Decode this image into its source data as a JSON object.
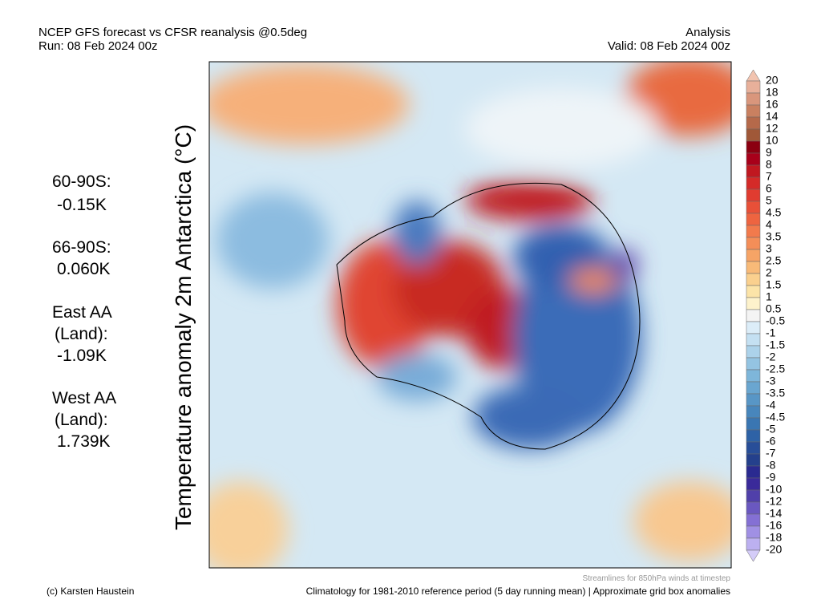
{
  "header": {
    "title": "NCEP GFS forecast vs CFSR reanalysis @0.5deg",
    "run": "Run: 08 Feb 2024 00z",
    "kind": "Analysis",
    "valid": "Valid: 08 Feb 2024 00z"
  },
  "map_title": "Temperature anomaly 2m Antarctica (°C)",
  "stats": [
    "60-90S:",
    "-0.15K",
    "66-90S:",
    "0.060K",
    "East AA",
    "(Land):",
    "-1.09K",
    "West AA",
    "(Land):",
    "1.739K"
  ],
  "colorbar": {
    "labels": [
      "20",
      "18",
      "16",
      "14",
      "12",
      "10",
      "9",
      "8",
      "7",
      "6",
      "5",
      "4.5",
      "4",
      "3.5",
      "3",
      "2.5",
      "2",
      "1.5",
      "1",
      "0.5",
      "-0.5",
      "-1",
      "-1.5",
      "-2",
      "-2.5",
      "-3",
      "-3.5",
      "-4",
      "-4.5",
      "-5",
      "-6",
      "-7",
      "-8",
      "-9",
      "-10",
      "-12",
      "-14",
      "-16",
      "-18",
      "-20"
    ],
    "colors": [
      "#f2c4b0",
      "#e8b09a",
      "#d9967c",
      "#c98060",
      "#b5694a",
      "#a05838",
      "#8b0010",
      "#a8001a",
      "#c01820",
      "#d42a28",
      "#e03c30",
      "#e85038",
      "#ee6440",
      "#f27a4c",
      "#f48e58",
      "#f6a466",
      "#f8ba78",
      "#fad08e",
      "#fce4a8",
      "#fdf2cc",
      "#f4f4f4",
      "#dcedf8",
      "#c4e0f2",
      "#acd2ea",
      "#94c4e2",
      "#7eb6da",
      "#6aa6d0",
      "#5896c6",
      "#4886bc",
      "#3a76b2",
      "#2e62a6",
      "#284e98",
      "#24408c",
      "#2a2a90",
      "#3a2a9a",
      "#5040aa",
      "#6a58c0",
      "#8470d4",
      "#a090e4",
      "#bcb0f0",
      "#d4ccf8"
    ]
  },
  "footer": {
    "credit": "(c) Karsten Haustein",
    "streamlines": "Streamlines for 850hPa winds at timestep",
    "climatology": "Climatology for 1981-2010 reference period (5 day running mean) | Approximate grid box anomalies"
  }
}
